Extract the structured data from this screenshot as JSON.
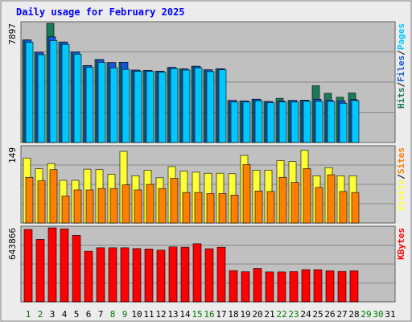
{
  "title": "Daily usage for February 2025",
  "colors": {
    "background": "#ececec",
    "plot_bg": "#c0c0c0",
    "title": "#0000ff",
    "hits": "#1a7a5a",
    "files": "#1558d6",
    "pages": "#00c8ff",
    "visits": "#ffff33",
    "sites": "#ff8000",
    "kbytes": "#ff0000",
    "weekday": "#000000",
    "weekend": "#007700"
  },
  "chart_data": [
    {
      "type": "bar",
      "name": "hits-files-pages",
      "ymax_label": "7897",
      "ylim": [
        0,
        7897
      ],
      "right_labels": [
        {
          "text": "Hits",
          "color_key": "hits"
        },
        {
          "text": "/",
          "color_key": "weekday"
        },
        {
          "text": "Files",
          "color_key": "files"
        },
        {
          "text": "/",
          "color_key": "weekday"
        },
        {
          "text": "Pages",
          "color_key": "pages"
        }
      ],
      "days": [
        1,
        2,
        3,
        4,
        5,
        6,
        7,
        8,
        9,
        10,
        11,
        12,
        13,
        14,
        15,
        16,
        17,
        18,
        19,
        20,
        21,
        22,
        23,
        24,
        25,
        26,
        27,
        28
      ],
      "series": [
        {
          "name": "Hits",
          "color_key": "hits",
          "values": [
            6800,
            5980,
            7897,
            6660,
            6010,
            5100,
            5500,
            5300,
            5320,
            4800,
            4780,
            4730,
            4980,
            4880,
            5060,
            4820,
            4890,
            2790,
            2760,
            2870,
            2720,
            2930,
            2790,
            2810,
            3760,
            3260,
            3000,
            3280
          ]
        },
        {
          "name": "Files",
          "color_key": "files",
          "values": [
            6800,
            5980,
            7000,
            6660,
            6010,
            5100,
            5500,
            5300,
            5320,
            4800,
            4780,
            4730,
            4980,
            4880,
            5060,
            4820,
            4890,
            2790,
            2760,
            2870,
            2720,
            2740,
            2790,
            2810,
            2870,
            2810,
            2760,
            2850
          ]
        },
        {
          "name": "Pages",
          "color_key": "pages",
          "values": [
            6650,
            5820,
            6750,
            6500,
            5850,
            4980,
            5300,
            4950,
            4850,
            4720,
            4720,
            4650,
            4900,
            4800,
            4950,
            4700,
            4820,
            2680,
            2680,
            2770,
            2630,
            2680,
            2680,
            2730,
            2730,
            2720,
            2600,
            2780
          ]
        }
      ]
    },
    {
      "type": "bar",
      "name": "visits-sites",
      "ymax_label": "149",
      "ylim": [
        0,
        149
      ],
      "right_labels": [
        {
          "text": "Visits",
          "color_key": "visits"
        },
        {
          "text": "/",
          "color_key": "weekday"
        },
        {
          "text": "Sites",
          "color_key": "sites"
        }
      ],
      "days": [
        1,
        2,
        3,
        4,
        5,
        6,
        7,
        8,
        9,
        10,
        11,
        12,
        13,
        14,
        15,
        16,
        17,
        18,
        19,
        20,
        21,
        22,
        23,
        24,
        25,
        26,
        27,
        28
      ],
      "series": [
        {
          "name": "Visits",
          "color_key": "visits",
          "values": [
            128,
            107,
            117,
            84,
            84,
            106,
            105,
            96,
            141,
            93,
            104,
            89,
            111,
            102,
            100,
            98,
            98,
            97,
            133,
            104,
            104,
            123,
            121,
            143,
            93,
            109,
            93,
            93
          ]
        },
        {
          "name": "Sites",
          "color_key": "sites",
          "values": [
            90,
            83,
            105,
            53,
            65,
            65,
            68,
            68,
            75,
            65,
            76,
            68,
            88,
            60,
            60,
            58,
            58,
            55,
            115,
            63,
            62,
            90,
            80,
            107,
            70,
            95,
            62,
            60
          ]
        }
      ]
    },
    {
      "type": "bar",
      "name": "kbytes",
      "ymax_label": "643866",
      "ylim": [
        0,
        643866
      ],
      "right_labels": [
        {
          "text": "KBytes",
          "color_key": "kbytes"
        }
      ],
      "days": [
        1,
        2,
        3,
        4,
        5,
        6,
        7,
        8,
        9,
        10,
        11,
        12,
        13,
        14,
        15,
        16,
        17,
        18,
        19,
        20,
        21,
        22,
        23,
        24,
        25,
        26,
        27,
        28
      ],
      "series": [
        {
          "name": "KBytes",
          "color_key": "kbytes",
          "values": [
            630000,
            543000,
            643866,
            635000,
            578000,
            440000,
            470000,
            470000,
            470000,
            463000,
            460000,
            450000,
            478000,
            475000,
            505000,
            462000,
            475000,
            272000,
            262000,
            290000,
            260000,
            260000,
            263000,
            280000,
            280000,
            270000,
            265000,
            270000
          ]
        }
      ]
    }
  ],
  "x_axis": {
    "labels": [
      {
        "day": "1",
        "weekend": true
      },
      {
        "day": "2",
        "weekend": true
      },
      {
        "day": "3",
        "weekend": false
      },
      {
        "day": "4",
        "weekend": false
      },
      {
        "day": "5",
        "weekend": false
      },
      {
        "day": "6",
        "weekend": false
      },
      {
        "day": "7",
        "weekend": false
      },
      {
        "day": "8",
        "weekend": true
      },
      {
        "day": "9",
        "weekend": true
      },
      {
        "day": "10",
        "weekend": false
      },
      {
        "day": "11",
        "weekend": false
      },
      {
        "day": "12",
        "weekend": false
      },
      {
        "day": "13",
        "weekend": false
      },
      {
        "day": "14",
        "weekend": false
      },
      {
        "day": "15",
        "weekend": true
      },
      {
        "day": "16",
        "weekend": true
      },
      {
        "day": "17",
        "weekend": false
      },
      {
        "day": "18",
        "weekend": false
      },
      {
        "day": "19",
        "weekend": false
      },
      {
        "day": "20",
        "weekend": false
      },
      {
        "day": "21",
        "weekend": false
      },
      {
        "day": "22",
        "weekend": true
      },
      {
        "day": "23",
        "weekend": true
      },
      {
        "day": "24",
        "weekend": false
      },
      {
        "day": "25",
        "weekend": false
      },
      {
        "day": "26",
        "weekend": false
      },
      {
        "day": "27",
        "weekend": false
      },
      {
        "day": "28",
        "weekend": false
      },
      {
        "day": "29",
        "weekend": true
      },
      {
        "day": "30",
        "weekend": true
      },
      {
        "day": "31",
        "weekend": false
      }
    ]
  }
}
